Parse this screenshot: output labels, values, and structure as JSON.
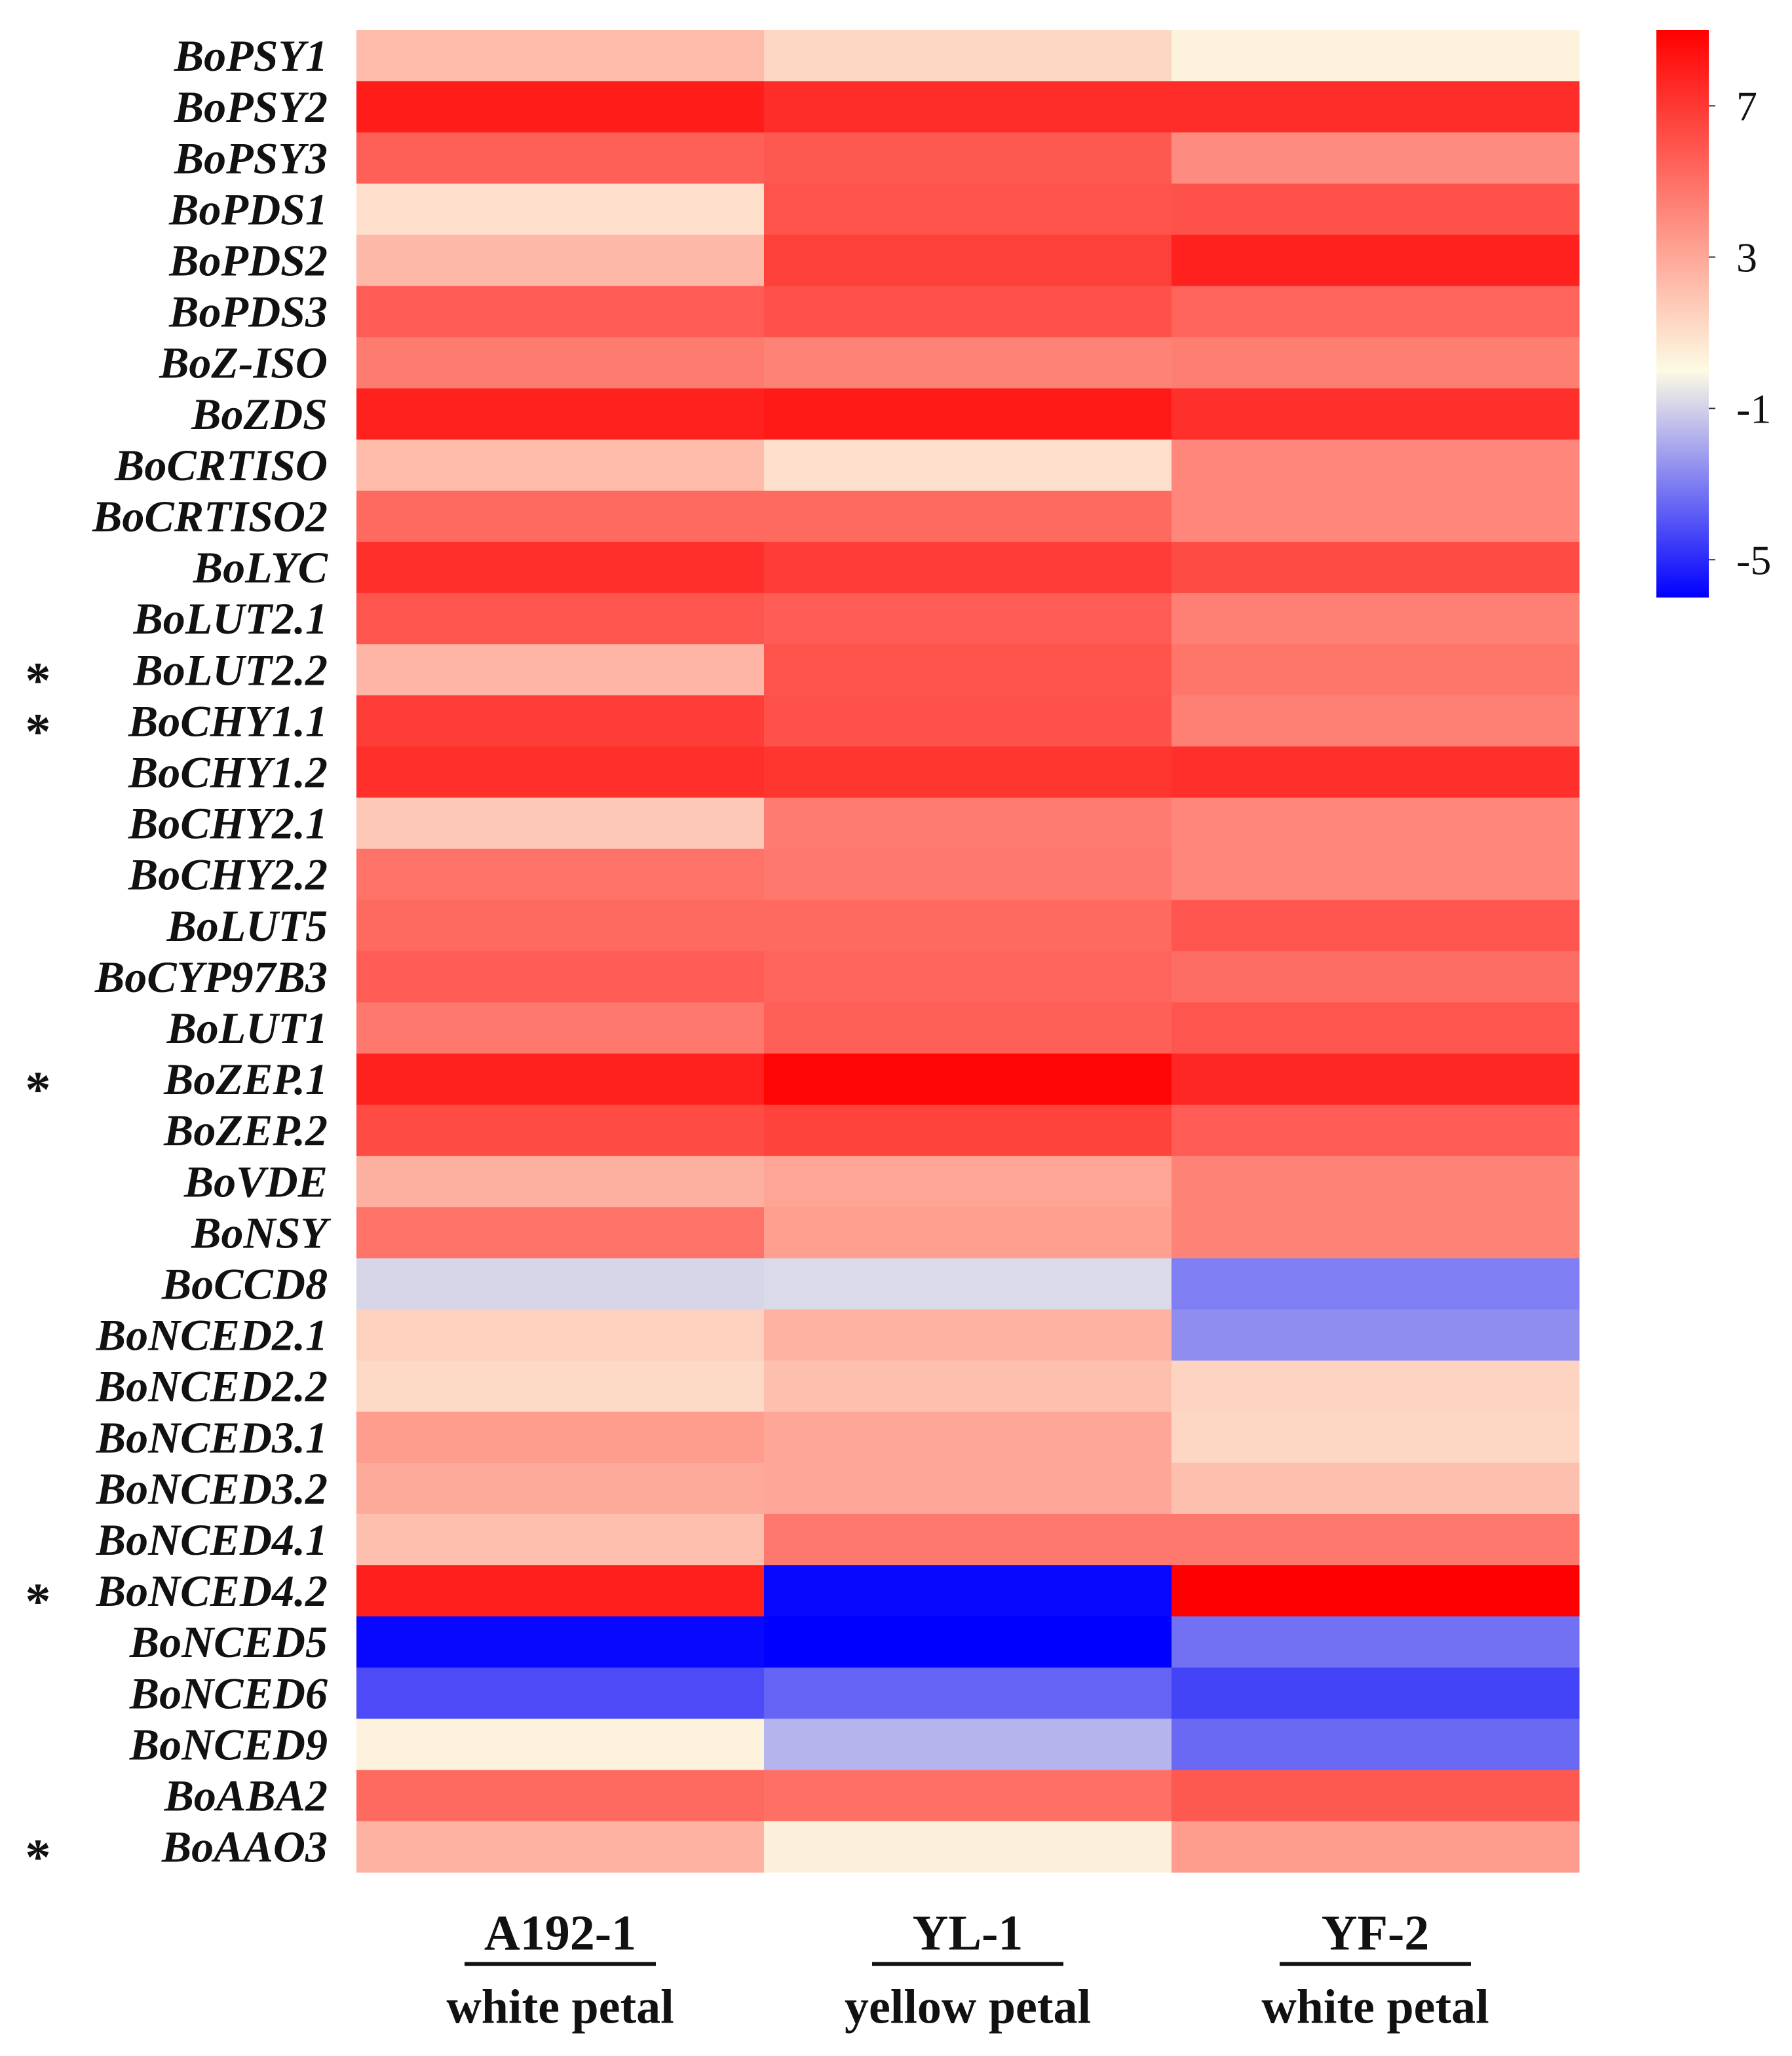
{
  "chart_data": {
    "type": "heatmap",
    "title": "",
    "rows": [
      "BoPSY1",
      "BoPSY2",
      "BoPSY3",
      "BoPDS1",
      "BoPDS2",
      "BoPDS3",
      "BoZ-ISO",
      "BoZDS",
      "BoCRTISO",
      "BoCRTISO2",
      "BoLYC",
      "BoLUT2.1",
      "BoLUT2.2",
      "BoCHY1.1",
      "BoCHY1.2",
      "BoCHY2.1",
      "BoCHY2.2",
      "BoLUT5",
      "BoCYP97B3",
      "BoLUT1",
      "BoZEP.1",
      "BoZEP.2",
      "BoVDE",
      "BoNSY",
      "BoCCD8",
      "BoNCED2.1",
      "BoNCED2.2",
      "BoNCED3.1",
      "BoNCED3.2",
      "BoNCED4.1",
      "BoNCED4.2",
      "BoNCED5",
      "BoNCED6",
      "BoNCED9",
      "BoABA2",
      "BoAAO3"
    ],
    "marked_rows": [
      "BoLUT2.2",
      "BoCHY1.1",
      "BoZEP.1",
      "BoNCED4.2",
      "BoAAO3"
    ],
    "mark_symbol": "*",
    "columns": [
      {
        "name": "A192-1",
        "description": "white petal"
      },
      {
        "name": "YL-1",
        "description": "yellow petal"
      },
      {
        "name": "YF-2",
        "description": "white petal"
      }
    ],
    "values": [
      [
        2.3,
        1.3,
        0.3
      ],
      [
        8.0,
        7.4,
        7.4
      ],
      [
        5.6,
        5.8,
        4.0
      ],
      [
        1.0,
        6.0,
        6.1
      ],
      [
        2.4,
        6.7,
        7.8
      ],
      [
        5.7,
        6.1,
        5.4
      ],
      [
        4.6,
        4.3,
        4.5
      ],
      [
        7.8,
        8.1,
        7.3
      ],
      [
        2.3,
        1.0,
        4.2
      ],
      [
        5.2,
        5.2,
        4.2
      ],
      [
        7.3,
        6.8,
        6.3
      ],
      [
        5.9,
        5.7,
        4.4
      ],
      [
        2.5,
        6.0,
        4.8
      ],
      [
        6.8,
        6.1,
        4.4
      ],
      [
        7.3,
        7.1,
        7.3
      ],
      [
        1.8,
        4.6,
        4.2
      ],
      [
        4.9,
        4.7,
        4.2
      ],
      [
        5.2,
        5.2,
        5.9
      ],
      [
        5.7,
        5.4,
        5.1
      ],
      [
        4.7,
        5.6,
        5.9
      ],
      [
        7.8,
        8.8,
        7.6
      ],
      [
        6.3,
        6.6,
        5.7
      ],
      [
        2.7,
        3.1,
        4.3
      ],
      [
        4.9,
        3.3,
        4.3
      ],
      [
        -0.9,
        -0.8,
        -3.0
      ],
      [
        1.5,
        2.6,
        -2.6
      ],
      [
        1.2,
        2.1,
        1.4
      ],
      [
        3.4,
        3.0,
        1.3
      ],
      [
        2.9,
        3.0,
        2.1
      ],
      [
        2.1,
        4.7,
        4.7
      ],
      [
        7.9,
        -5.8,
        9.0
      ],
      [
        -5.8,
        -6.8,
        -3.3
      ],
      [
        -4.2,
        -3.6,
        -4.4
      ],
      [
        0.3,
        -1.7,
        -3.5
      ],
      [
        5.2,
        5.0,
        5.8
      ],
      [
        2.6,
        0.4,
        3.4
      ]
    ],
    "colorbar": {
      "ticks": [
        "7",
        "3",
        "-1",
        "-5"
      ],
      "tick_values": [
        7,
        3,
        -1,
        -5
      ],
      "range": [
        -6,
        9
      ],
      "colors": {
        "low": "#0000ff",
        "mid": "#fdfbe4",
        "high": "#ff0000"
      },
      "midpoint": 0
    }
  }
}
